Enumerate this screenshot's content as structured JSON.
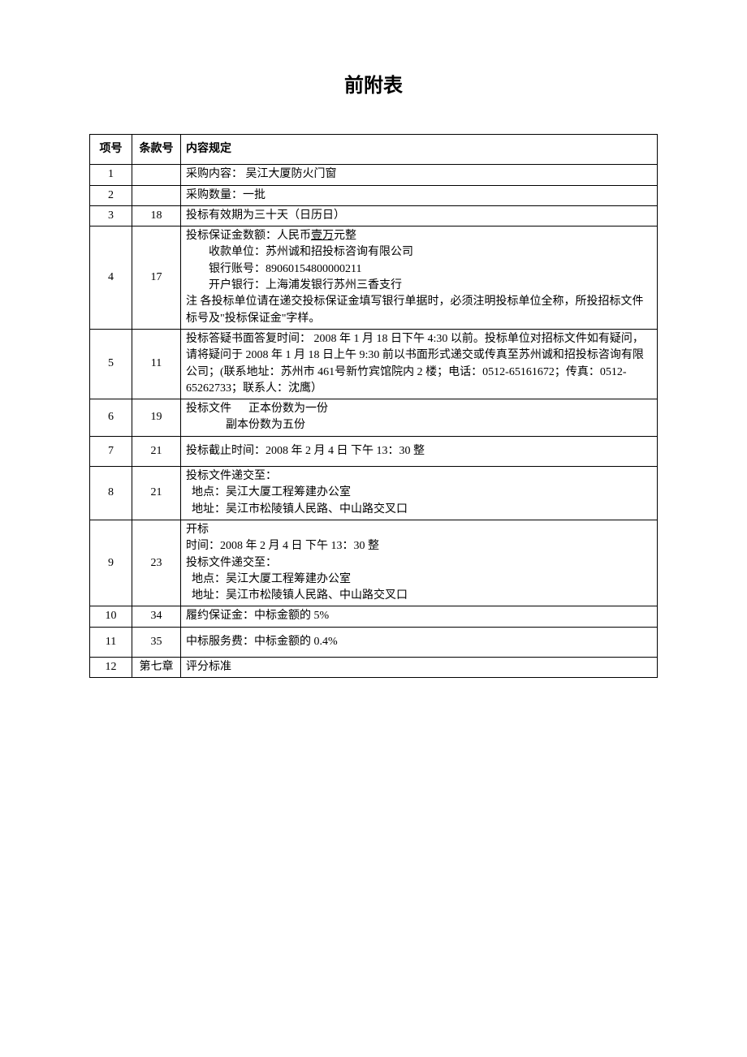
{
  "title": "前附表",
  "headers": {
    "col1": "项号",
    "col2": "条款号",
    "col3": "内容规定"
  },
  "rows": [
    {
      "num": "1",
      "clause": "",
      "content": "采购内容：  吴江大厦防火门窗"
    },
    {
      "num": "2",
      "clause": "",
      "content": "采购数量：一批"
    },
    {
      "num": "3",
      "clause": "18",
      "content": "投标有效期为三十天（日历日）"
    },
    {
      "num": "4",
      "clause": "17",
      "line1_pre": "投标保证金数额：人民币",
      "line1_underline": "壹万",
      "line1_post": "元整",
      "line2": "收款单位：苏州诚和招投标咨询有限公司",
      "line3": "银行账号：89060154800000211",
      "line4": "开户银行：上海浦发银行苏州三香支行",
      "line5": "注  各投标单位请在递交投标保证金填写银行单据时，必须注明投标单位全称，所投招标文件标号及\"投标保证金\"字样。"
    },
    {
      "num": "5",
      "clause": "11",
      "content": "投标答疑书面答复时间：  2008 年 1 月 18 日下午 4:30 以前。投标单位对招标文件如有疑问，请将疑问于 2008 年 1 月 18 日上午 9:30 前以书面形式递交或传真至苏州诚和招投标咨询有限公司；(联系地址：苏州市 461号新竹宾馆院内 2 楼；电话：0512-65161672；传真：0512-65262733；联系人：沈鹰）"
    },
    {
      "num": "6",
      "clause": "19",
      "line1": "投标文件      正本份数为一份",
      "line2": "              副本份数为五份"
    },
    {
      "num": "7",
      "clause": "21",
      "content": "投标截止时间：2008 年 2 月 4 日  下午 13：30 整",
      "tall": true
    },
    {
      "num": "8",
      "clause": "21",
      "line1": "投标文件递交至：",
      "line2": "  地点：吴江大厦工程筹建办公室",
      "line3": "  地址：吴江市松陵镇人民路、中山路交叉口"
    },
    {
      "num": "9",
      "clause": "23",
      "line1": "开标",
      "line2": "时间：2008 年 2 月 4 日  下午 13：30 整",
      "line3": "投标文件递交至：",
      "line4": "  地点：吴江大厦工程筹建办公室",
      "line5": "  地址：吴江市松陵镇人民路、中山路交叉口"
    },
    {
      "num": "10",
      "clause": "34",
      "content": "履约保证金：中标金额的 5%"
    },
    {
      "num": "11",
      "clause": "35",
      "content": "中标服务费：中标金额的 0.4%",
      "tall": true
    },
    {
      "num": "12",
      "clause": "第七章",
      "content": "评分标准"
    }
  ]
}
